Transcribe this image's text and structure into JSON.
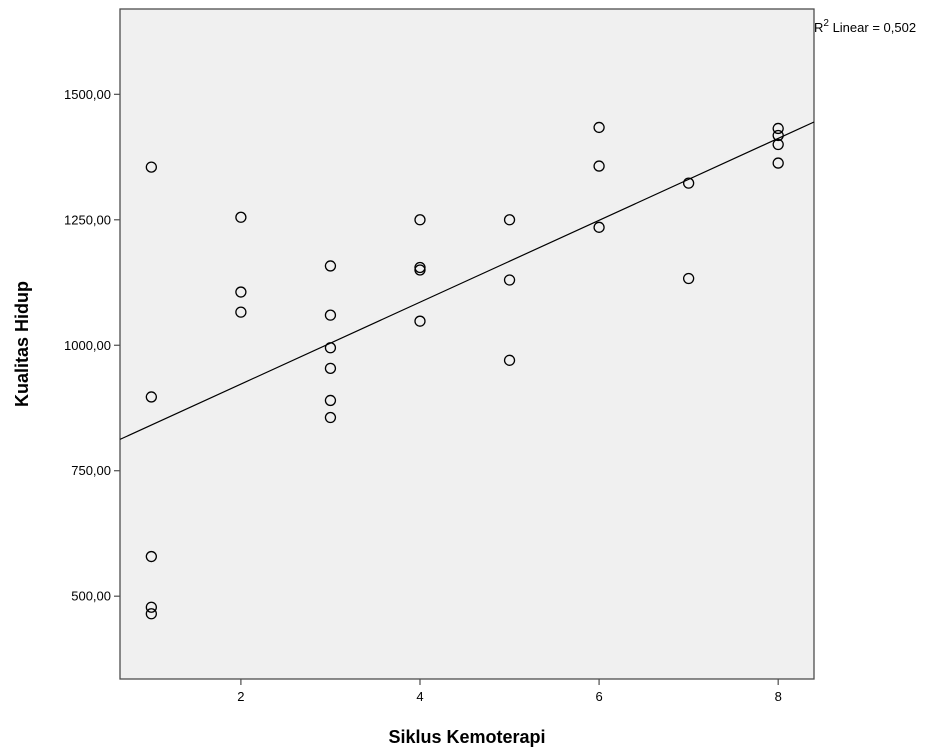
{
  "chart_data": {
    "type": "scatter",
    "xlabel": "Siklus Kemoterapi",
    "ylabel": "Kualitas Hidup",
    "xlim": [
      0.65,
      8.4
    ],
    "ylim": [
      335,
      1670
    ],
    "x_ticks": [
      2,
      4,
      6,
      8
    ],
    "y_ticks": [
      500,
      750,
      1000,
      1250,
      1500
    ],
    "x_tick_labels": [
      "2",
      "4",
      "6",
      "8"
    ],
    "y_tick_labels": [
      "500,00",
      "750,00",
      "1000,00",
      "1250,00",
      "1500,00"
    ],
    "fit_line": {
      "type": "linear",
      "label_prefix": "R",
      "label_superscript": "2",
      "label_suffix": " Linear = 0,502",
      "intercept": 759.4,
      "slope": 81.6
    },
    "points": [
      {
        "x": 1,
        "y": 1355
      },
      {
        "x": 1,
        "y": 897
      },
      {
        "x": 1,
        "y": 579
      },
      {
        "x": 1,
        "y": 478
      },
      {
        "x": 1,
        "y": 465
      },
      {
        "x": 2,
        "y": 1255
      },
      {
        "x": 2,
        "y": 1106
      },
      {
        "x": 2,
        "y": 1066
      },
      {
        "x": 3,
        "y": 1158
      },
      {
        "x": 3,
        "y": 1060
      },
      {
        "x": 3,
        "y": 995
      },
      {
        "x": 3,
        "y": 954
      },
      {
        "x": 3,
        "y": 890
      },
      {
        "x": 3,
        "y": 856
      },
      {
        "x": 4,
        "y": 1250
      },
      {
        "x": 4,
        "y": 1155
      },
      {
        "x": 4,
        "y": 1150
      },
      {
        "x": 4,
        "y": 1048
      },
      {
        "x": 5,
        "y": 1250
      },
      {
        "x": 5,
        "y": 1130
      },
      {
        "x": 5,
        "y": 970
      },
      {
        "x": 6,
        "y": 1434
      },
      {
        "x": 6,
        "y": 1357
      },
      {
        "x": 6,
        "y": 1235
      },
      {
        "x": 7,
        "y": 1323
      },
      {
        "x": 7,
        "y": 1133
      },
      {
        "x": 8,
        "y": 1432
      },
      {
        "x": 8,
        "y": 1418
      },
      {
        "x": 8,
        "y": 1400
      },
      {
        "x": 8,
        "y": 1363
      }
    ],
    "grid": false,
    "legend": "none",
    "background_color": "#f0f0f0",
    "marker_color": "#000000",
    "line_color": "#000000"
  }
}
